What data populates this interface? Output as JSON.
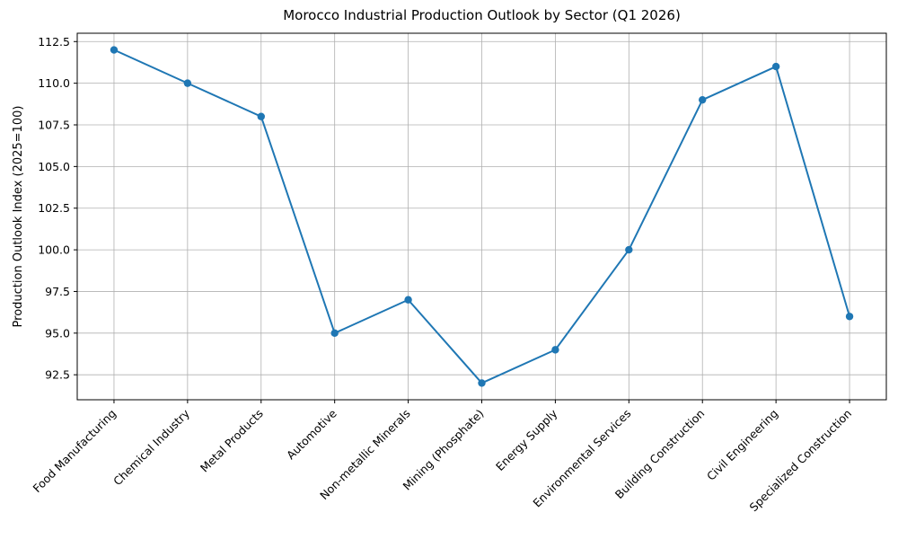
{
  "chart_data": {
    "type": "line",
    "title": "Morocco Industrial Production Outlook by Sector (Q1 2026)",
    "xlabel": "",
    "ylabel": "Production Outlook Index (2025=100)",
    "categories": [
      "Food Manufacturing",
      "Chemical Industry",
      "Metal Products",
      "Automotive",
      "Non-metallic Minerals",
      "Mining (Phosphate)",
      "Energy Supply",
      "Environmental Services",
      "Building Construction",
      "Civil Engineering",
      "Specialized Construction"
    ],
    "series": [
      {
        "name": "Production Outlook Index",
        "values": [
          112,
          110,
          108,
          95,
          97,
          92,
          94,
          100,
          109,
          111,
          96
        ]
      }
    ],
    "ylim": [
      91,
      113
    ],
    "yticks": [
      92.5,
      95.0,
      97.5,
      100.0,
      102.5,
      105.0,
      107.5,
      110.0,
      112.5
    ],
    "ytick_labels": [
      "92.5",
      "95.0",
      "97.5",
      "100.0",
      "102.5",
      "105.0",
      "107.5",
      "110.0",
      "112.5"
    ],
    "grid": true,
    "legend": "none",
    "marker": "o",
    "line_color": "#1f77b4",
    "grid_color": "#b0b0b0",
    "spine_color": "#000000",
    "x_tick_rotation_deg": 45
  }
}
